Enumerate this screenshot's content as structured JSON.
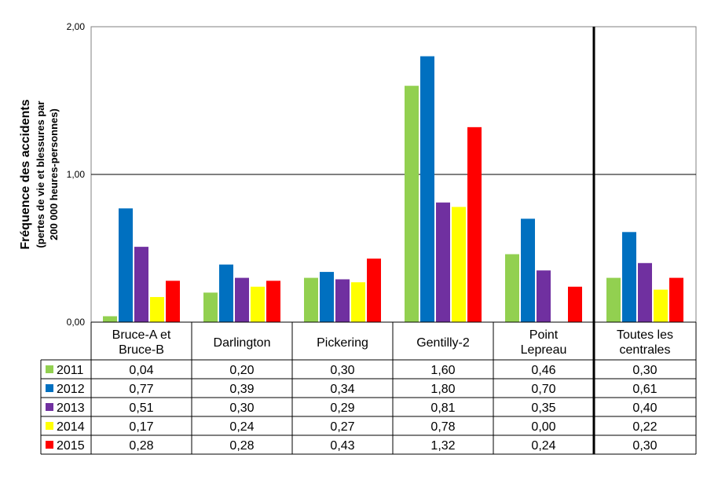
{
  "chart_data": {
    "type": "bar",
    "ylabel_lines": [
      "Fréquence des accidents",
      "(pertes de vie et blessures par",
      "200 000 heures-personnes)"
    ],
    "y_ticks": [
      "0,00",
      "1,00",
      "2,00"
    ],
    "ylim": [
      0,
      2
    ],
    "grid": true,
    "categories": [
      [
        "Bruce-A et",
        "Bruce-B"
      ],
      [
        "Darlington"
      ],
      [
        "Pickering"
      ],
      [
        "Gentilly-2"
      ],
      [
        "Point",
        "Lepreau"
      ],
      [
        "Toutes les",
        "centrales"
      ]
    ],
    "series": [
      {
        "name": "2011",
        "color": "#92d050",
        "values": [
          0.04,
          0.2,
          0.3,
          1.6,
          0.46,
          0.3
        ],
        "labels": [
          "0,04",
          "0,20",
          "0,30",
          "1,60",
          "0,46",
          "0,30"
        ]
      },
      {
        "name": "2012",
        "color": "#0070c0",
        "values": [
          0.77,
          0.39,
          0.34,
          1.8,
          0.7,
          0.61
        ],
        "labels": [
          "0,77",
          "0,39",
          "0,34",
          "1,80",
          "0,70",
          "0,61"
        ]
      },
      {
        "name": "2013",
        "color": "#7030a0",
        "values": [
          0.51,
          0.3,
          0.29,
          0.81,
          0.35,
          0.4
        ],
        "labels": [
          "0,51",
          "0,30",
          "0,29",
          "0,81",
          "0,35",
          "0,40"
        ]
      },
      {
        "name": "2014",
        "color": "#ffff00",
        "values": [
          0.17,
          0.24,
          0.27,
          0.78,
          0.0,
          0.22
        ],
        "labels": [
          "0,17",
          "0,24",
          "0,27",
          "0,78",
          "0,00",
          "0,22"
        ]
      },
      {
        "name": "2015",
        "color": "#ff0000",
        "values": [
          0.28,
          0.28,
          0.43,
          1.32,
          0.24,
          0.3
        ],
        "labels": [
          "0,28",
          "0,28",
          "0,43",
          "1,32",
          "0,24",
          "0,30"
        ]
      }
    ],
    "legend": "data-table-below"
  }
}
